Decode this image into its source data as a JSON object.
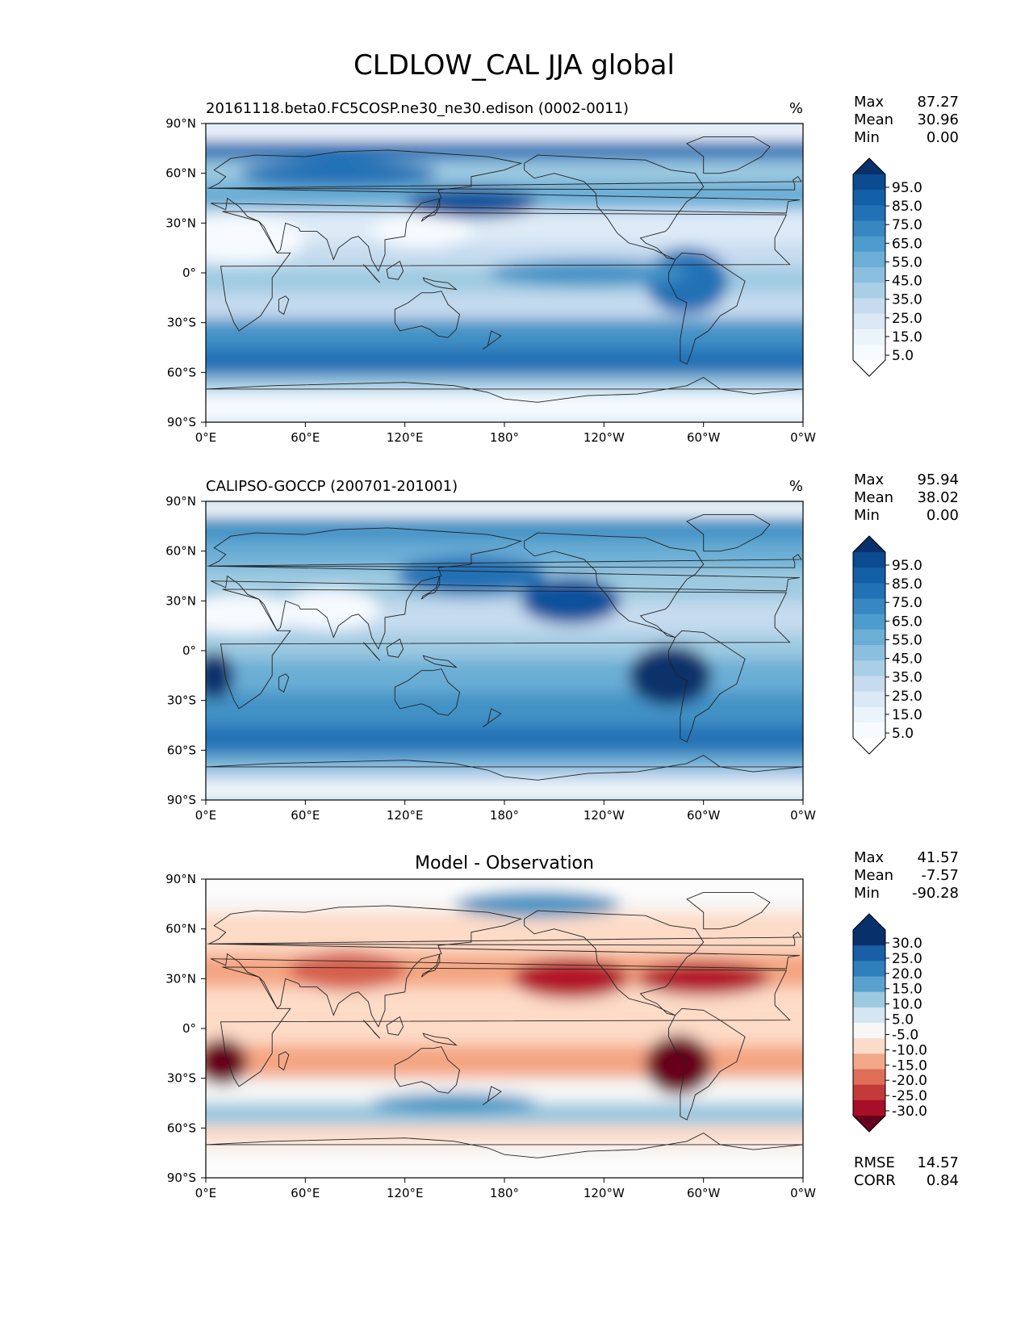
{
  "title": "CLDLOW_CAL JJA global",
  "axes": {
    "x_ticks": [
      "0°E",
      "60°E",
      "120°E",
      "180°",
      "120°W",
      "60°W",
      "0°W"
    ],
    "y_ticks": [
      "90°N",
      "60°N",
      "30°N",
      "0°",
      "30°S",
      "60°S",
      "90°S"
    ]
  },
  "panels": [
    {
      "left_title": "20161118.beta0.FC5COSP.ne30_ne30.edison (0002-0011)",
      "center_title": "",
      "units": "%",
      "stats": [
        {
          "label": "Max",
          "value": "87.27"
        },
        {
          "label": "Mean",
          "value": "30.96"
        },
        {
          "label": "Min",
          "value": "0.00"
        }
      ],
      "colorbar_labels": [
        "95.0",
        "85.0",
        "75.0",
        "65.0",
        "55.0",
        "45.0",
        "35.0",
        "25.0",
        "15.0",
        "5.0"
      ]
    },
    {
      "left_title": "CALIPSO-GOCCP (200701-201001)",
      "center_title": "",
      "units": "%",
      "stats": [
        {
          "label": "Max",
          "value": "95.94"
        },
        {
          "label": "Mean",
          "value": "38.02"
        },
        {
          "label": "Min",
          "value": "0.00"
        }
      ],
      "colorbar_labels": [
        "95.0",
        "85.0",
        "75.0",
        "65.0",
        "55.0",
        "45.0",
        "35.0",
        "25.0",
        "15.0",
        "5.0"
      ]
    },
    {
      "left_title": "",
      "center_title": "Model - Observation",
      "units": "",
      "stats": [
        {
          "label": "Max",
          "value": "41.57"
        },
        {
          "label": "Mean",
          "value": "-7.57"
        },
        {
          "label": "Min",
          "value": "-90.28"
        }
      ],
      "colorbar_labels": [
        "30.0",
        "25.0",
        "20.0",
        "15.0",
        "10.0",
        "5.0",
        "-5.0",
        "-10.0",
        "-15.0",
        "-20.0",
        "-25.0",
        "-30.0"
      ],
      "metrics": [
        {
          "label": "RMSE",
          "value": "14.57"
        },
        {
          "label": "CORR",
          "value": "0.84"
        }
      ]
    }
  ],
  "colors": {
    "blues": [
      "#f7fbff",
      "#deebf7",
      "#c6dbef",
      "#9ecae1",
      "#6baed6",
      "#4292c6",
      "#2171b5",
      "#08519c",
      "#08306b"
    ],
    "diverging": [
      "#67001f",
      "#b2182b",
      "#d6604d",
      "#f4a582",
      "#fddbc7",
      "#f7f7f7",
      "#d1e5f0",
      "#92c5de",
      "#4393c3",
      "#2166ac",
      "#053061"
    ]
  },
  "chart_data": [
    {
      "type": "heatmap",
      "title": "20161118.beta0.FC5COSP.ne30_ne30.edison (0002-0011)",
      "units": "%",
      "x_range": [
        0,
        360
      ],
      "y_range": [
        -90,
        90
      ],
      "colorbar_levels": [
        0,
        5,
        10,
        15,
        20,
        25,
        30,
        35,
        40,
        45,
        50,
        55,
        60,
        65,
        70,
        75,
        80,
        85,
        90,
        95,
        100
      ],
      "zonal_mean_approx": {
        "lat": [
          80,
          60,
          30,
          10,
          -10,
          -30,
          -50,
          -60,
          -80
        ],
        "value": [
          45,
          40,
          30,
          25,
          30,
          40,
          60,
          55,
          15
        ]
      },
      "max": 87.27,
      "mean": 30.96,
      "min": 0.0
    },
    {
      "type": "heatmap",
      "title": "CALIPSO-GOCCP (200701-201001)",
      "units": "%",
      "x_range": [
        0,
        360
      ],
      "y_range": [
        -90,
        90
      ],
      "colorbar_levels": [
        0,
        5,
        10,
        15,
        20,
        25,
        30,
        35,
        40,
        45,
        50,
        55,
        60,
        65,
        70,
        75,
        80,
        85,
        90,
        95,
        100
      ],
      "zonal_mean_approx": {
        "lat": [
          80,
          60,
          30,
          10,
          -10,
          -30,
          -50,
          -60,
          -80
        ],
        "value": [
          60,
          45,
          40,
          35,
          40,
          50,
          60,
          55,
          20
        ]
      },
      "max": 95.94,
      "mean": 38.02,
      "min": 0.0
    },
    {
      "type": "heatmap",
      "title": "Model - Observation",
      "units": "",
      "x_range": [
        0,
        360
      ],
      "y_range": [
        -90,
        90
      ],
      "colorbar_levels": [
        -35,
        -30,
        -25,
        -20,
        -15,
        -10,
        -5,
        5,
        10,
        15,
        20,
        25,
        30,
        35
      ],
      "zonal_mean_approx": {
        "lat": [
          80,
          60,
          30,
          10,
          -10,
          -30,
          -50,
          -60,
          -80
        ],
        "value": [
          -15,
          -5,
          -10,
          -10,
          -10,
          -10,
          5,
          -5,
          -5
        ]
      },
      "max": 41.57,
      "mean": -7.57,
      "min": -90.28,
      "rmse": 14.57,
      "corr": 0.84
    }
  ]
}
